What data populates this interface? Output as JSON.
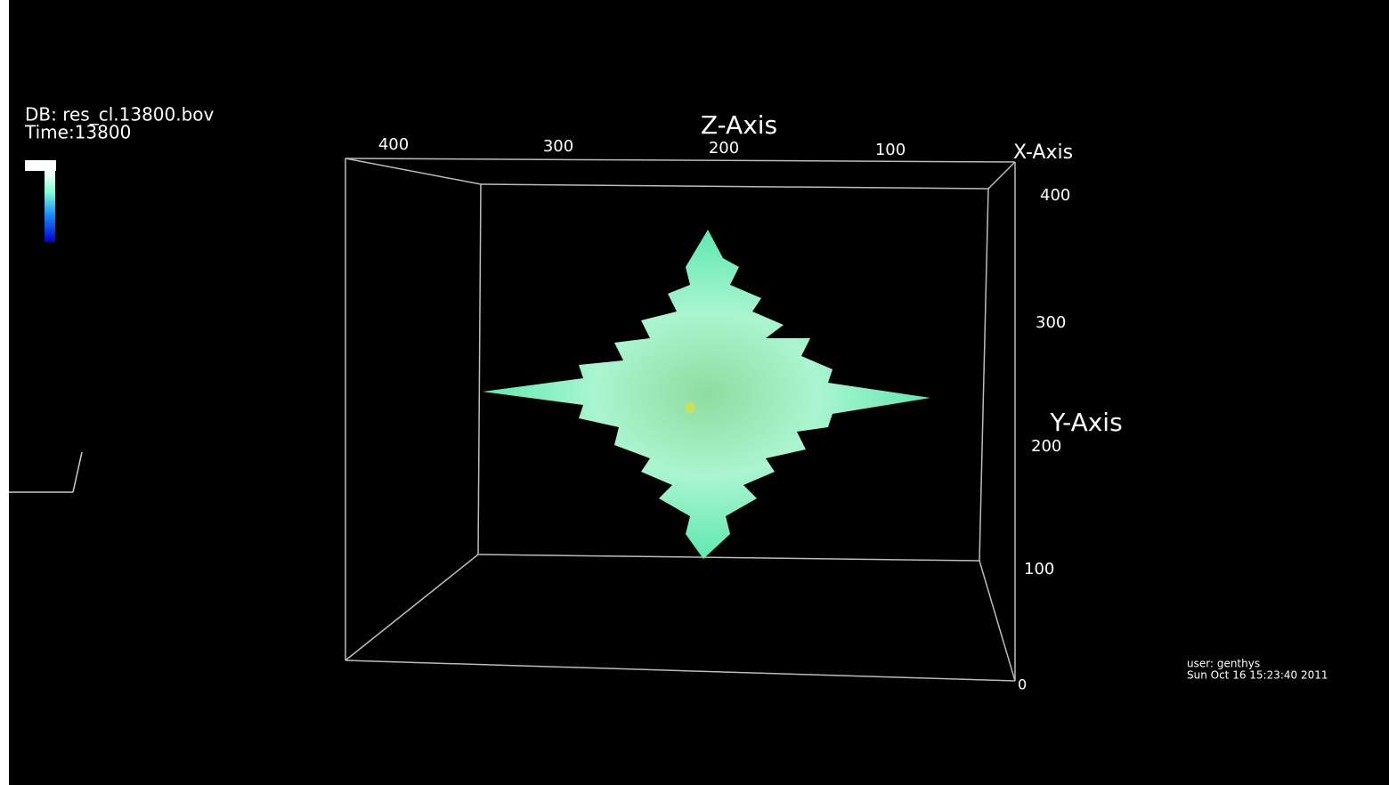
{
  "header": {
    "db": "DB: res_cl.13800.bov",
    "time": "Time:13800"
  },
  "z_axis": {
    "title": "Z-Axis",
    "ticks": [
      "400",
      "300",
      "200",
      "100"
    ]
  },
  "x_axis": {
    "title": "X-Axis"
  },
  "y_axis": {
    "title": "Y-Axis",
    "ticks": [
      "400",
      "300",
      "200",
      "100",
      "0"
    ]
  },
  "footer": {
    "user": "user: genthys",
    "date": "Sun Oct 16 15:23:40 2011"
  }
}
